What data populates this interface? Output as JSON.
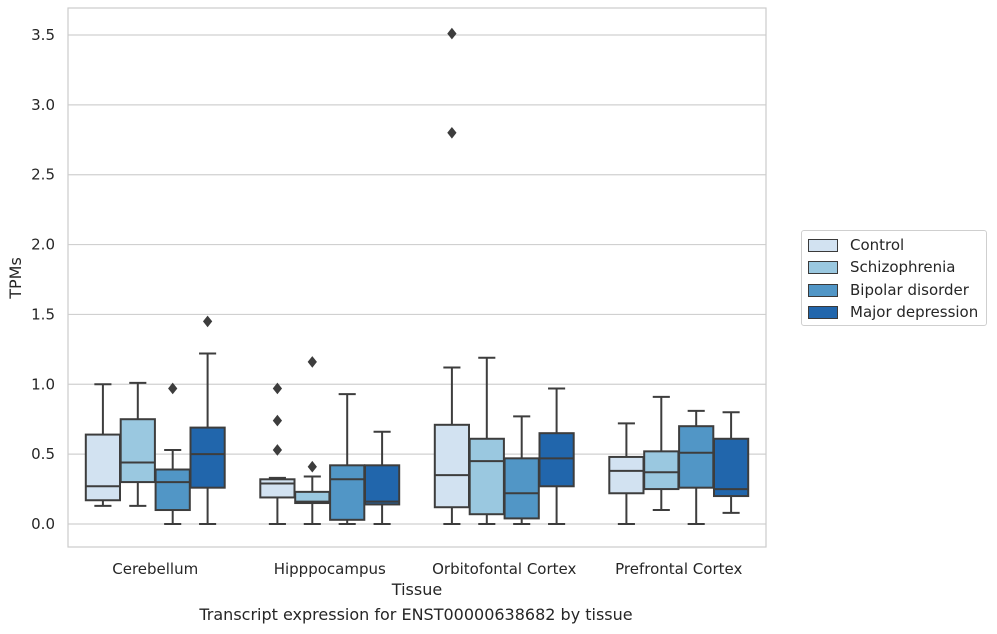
{
  "chart_data": {
    "type": "box",
    "caption": "Transcript expression for ENST00000638682 by tissue",
    "xlabel": "Tissue",
    "ylabel": "TPMs",
    "ylim": [
      -0.17,
      3.68
    ],
    "yticks": [
      "0.0",
      "0.5",
      "1.0",
      "1.5",
      "2.0",
      "2.5",
      "3.0",
      "3.5"
    ],
    "ytick_values": [
      0.0,
      0.5,
      1.0,
      1.5,
      2.0,
      2.5,
      3.0,
      3.5
    ],
    "grid": "horizontal",
    "legend_position": "right",
    "categories": [
      "Cerebellum",
      "Hipppocampus",
      "Orbitofontal Cortex",
      "Prefrontal Cortex"
    ],
    "series": [
      {
        "name": "Control",
        "color": "#d2e2f1",
        "boxes": [
          {
            "whisker_low": 0.13,
            "q1": 0.17,
            "median": 0.27,
            "q3": 0.64,
            "whisker_high": 1.0,
            "outliers": []
          },
          {
            "whisker_low": 0.0,
            "q1": 0.19,
            "median": 0.29,
            "q3": 0.32,
            "whisker_high": 0.33,
            "outliers": [
              0.53,
              0.74,
              0.97
            ]
          },
          {
            "whisker_low": 0.0,
            "q1": 0.12,
            "median": 0.35,
            "q3": 0.71,
            "whisker_high": 1.12,
            "outliers": [
              2.8,
              3.51
            ]
          },
          {
            "whisker_low": 0.0,
            "q1": 0.22,
            "median": 0.38,
            "q3": 0.48,
            "whisker_high": 0.72,
            "outliers": []
          }
        ]
      },
      {
        "name": "Schizophrenia",
        "color": "#9ac8e0",
        "boxes": [
          {
            "whisker_low": 0.13,
            "q1": 0.3,
            "median": 0.44,
            "q3": 0.75,
            "whisker_high": 1.01,
            "outliers": []
          },
          {
            "whisker_low": 0.0,
            "q1": 0.15,
            "median": 0.16,
            "q3": 0.23,
            "whisker_high": 0.34,
            "outliers": [
              0.41,
              1.16
            ]
          },
          {
            "whisker_low": 0.0,
            "q1": 0.07,
            "median": 0.45,
            "q3": 0.61,
            "whisker_high": 1.19,
            "outliers": []
          },
          {
            "whisker_low": 0.1,
            "q1": 0.25,
            "median": 0.37,
            "q3": 0.52,
            "whisker_high": 0.91,
            "outliers": []
          }
        ]
      },
      {
        "name": "Bipolar disorder",
        "color": "#5196c6",
        "boxes": [
          {
            "whisker_low": 0.0,
            "q1": 0.1,
            "median": 0.3,
            "q3": 0.39,
            "whisker_high": 0.53,
            "outliers": [
              0.97
            ]
          },
          {
            "whisker_low": 0.0,
            "q1": 0.03,
            "median": 0.32,
            "q3": 0.42,
            "whisker_high": 0.93,
            "outliers": []
          },
          {
            "whisker_low": 0.0,
            "q1": 0.04,
            "median": 0.22,
            "q3": 0.47,
            "whisker_high": 0.77,
            "outliers": []
          },
          {
            "whisker_low": 0.0,
            "q1": 0.26,
            "median": 0.51,
            "q3": 0.7,
            "whisker_high": 0.81,
            "outliers": []
          }
        ]
      },
      {
        "name": "Major depression",
        "color": "#2166ac",
        "boxes": [
          {
            "whisker_low": 0.0,
            "q1": 0.26,
            "median": 0.5,
            "q3": 0.69,
            "whisker_high": 1.22,
            "outliers": [
              1.45
            ]
          },
          {
            "whisker_low": 0.0,
            "q1": 0.14,
            "median": 0.16,
            "q3": 0.42,
            "whisker_high": 0.66,
            "outliers": []
          },
          {
            "whisker_low": 0.0,
            "q1": 0.27,
            "median": 0.47,
            "q3": 0.65,
            "whisker_high": 0.97,
            "outliers": []
          },
          {
            "whisker_low": 0.08,
            "q1": 0.2,
            "median": 0.25,
            "q3": 0.61,
            "whisker_high": 0.8,
            "outliers": []
          }
        ]
      }
    ]
  }
}
